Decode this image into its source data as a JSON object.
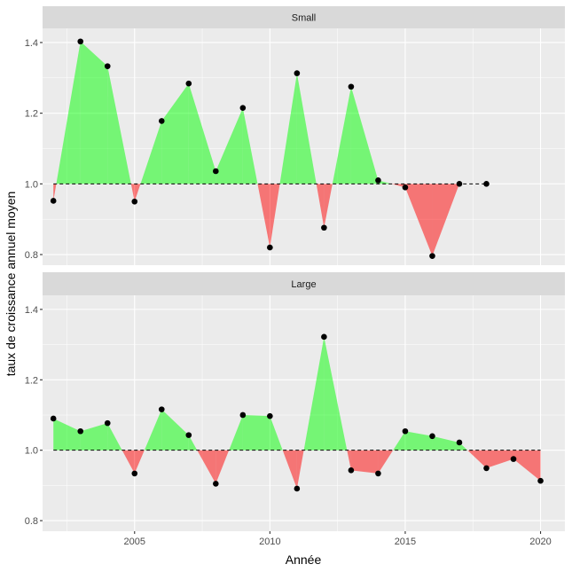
{
  "chart_data": {
    "type": "area",
    "xlabel": "Année",
    "ylabel": "taux de croissance annuel moyen",
    "xlim": [
      2001.6,
      2020.9
    ],
    "ylim": [
      0.77,
      1.44
    ],
    "x_ticks": [
      2005,
      2010,
      2015,
      2020
    ],
    "y_ticks": [
      0.8,
      1.0,
      1.2,
      1.4
    ],
    "reference_y": 1.0,
    "grid": true,
    "positive_color": "#00FF00",
    "negative_color": "#FF0000",
    "facets": [
      {
        "label": "Small",
        "x": [
          2002,
          2003,
          2004,
          2005,
          2006,
          2007,
          2008,
          2009,
          2010,
          2011,
          2012,
          2013,
          2014,
          2015,
          2016,
          2017,
          2018
        ],
        "y": [
          0.952,
          1.403,
          1.333,
          0.95,
          1.178,
          1.284,
          1.036,
          1.215,
          0.82,
          1.313,
          0.876,
          1.275,
          1.01,
          0.99,
          0.796,
          1.0,
          1.0
        ]
      },
      {
        "label": "Large",
        "x": [
          2002,
          2003,
          2004,
          2005,
          2006,
          2007,
          2008,
          2009,
          2010,
          2011,
          2012,
          2013,
          2014,
          2015,
          2016,
          2017,
          2018,
          2019,
          2020
        ],
        "y": [
          1.09,
          1.054,
          1.077,
          0.934,
          1.116,
          1.043,
          0.905,
          1.1,
          1.097,
          0.891,
          1.322,
          0.943,
          0.934,
          1.054,
          1.04,
          1.022,
          0.949,
          0.975,
          0.913
        ]
      }
    ]
  }
}
